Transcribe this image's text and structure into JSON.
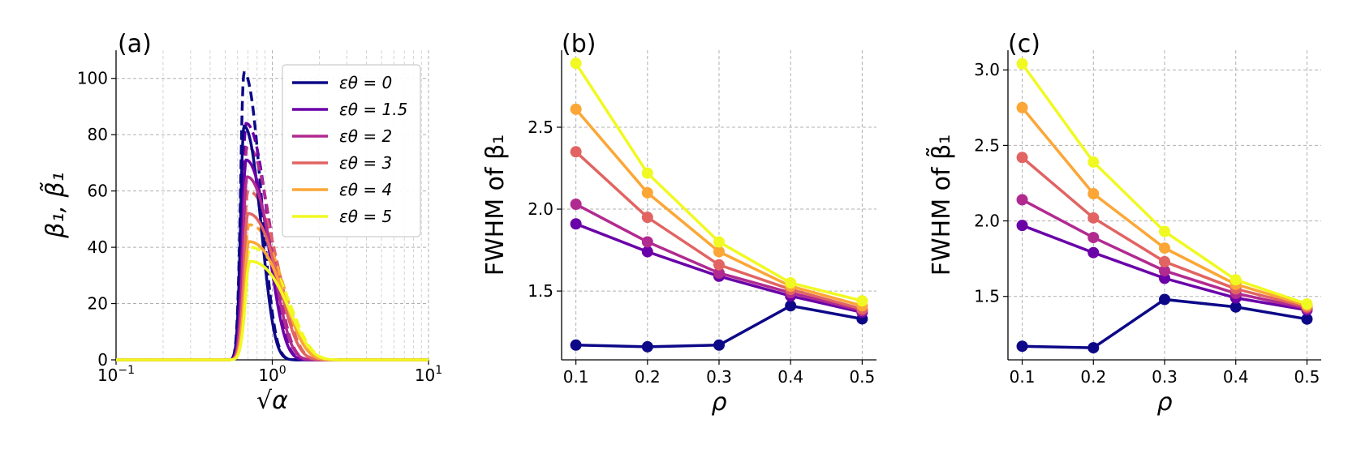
{
  "colors": [
    "#0d0887",
    "#6a00a8",
    "#b12a90",
    "#e16462",
    "#fca636",
    "#f0f921"
  ],
  "chart_data": [
    {
      "panel_label": "(a)",
      "type": "line",
      "xscale": "log",
      "xlim": [
        0.1,
        10
      ],
      "ylim": [
        0,
        110
      ],
      "xlabel": "√α",
      "ylabel": "β₁, β̃₁",
      "yticks": [
        0,
        20,
        40,
        60,
        80,
        100
      ],
      "xticks": [
        {
          "base": "10",
          "exp": "−1",
          "value": 0.1
        },
        {
          "base": "10",
          "exp": "0",
          "value": 1
        },
        {
          "base": "10",
          "exp": "1",
          "value": 10
        }
      ],
      "grid": true,
      "legend": {
        "placement": "top-right",
        "entries": [
          "εθ = 0",
          "εθ = 1.5",
          "εθ = 2",
          "εθ = 3",
          "εθ = 4",
          "εθ = 5"
        ]
      },
      "curve_model": "asymmetric peak with onset at sqrt(alpha)=0.5; peak location, peak height and left/right widths per series",
      "series": [
        {
          "name": "εθ = 0",
          "onset": 0.5,
          "peak_x": 0.66,
          "solid_peak": 83,
          "dashed_peak": 102,
          "left_width": 0.06,
          "right_width": 0.3
        },
        {
          "name": "εθ = 1.5",
          "onset": 0.5,
          "peak_x": 0.68,
          "solid_peak": 71,
          "dashed_peak": 84,
          "left_width": 0.07,
          "right_width": 0.42
        },
        {
          "name": "εθ = 2",
          "onset": 0.5,
          "peak_x": 0.69,
          "solid_peak": 65,
          "dashed_peak": 76,
          "left_width": 0.075,
          "right_width": 0.48
        },
        {
          "name": "εθ = 3",
          "onset": 0.5,
          "peak_x": 0.7,
          "solid_peak": 52,
          "dashed_peak": 60,
          "left_width": 0.08,
          "right_width": 0.6
        },
        {
          "name": "εθ = 4",
          "onset": 0.5,
          "peak_x": 0.71,
          "solid_peak": 42,
          "dashed_peak": 48,
          "left_width": 0.085,
          "right_width": 0.72
        },
        {
          "name": "εθ = 5",
          "onset": 0.5,
          "peak_x": 0.72,
          "solid_peak": 35,
          "dashed_peak": 40,
          "left_width": 0.09,
          "right_width": 0.82
        }
      ]
    },
    {
      "panel_label": "(b)",
      "type": "line",
      "x": [
        0.1,
        0.2,
        0.3,
        0.4,
        0.5
      ],
      "xlim": [
        0.08,
        0.52
      ],
      "ylim": [
        1.08,
        2.97
      ],
      "xticks": [
        "0.1",
        "0.2",
        "0.3",
        "0.4",
        "0.5"
      ],
      "yticks": [
        "1.5",
        "2.0",
        "2.5"
      ],
      "xlabel": "ρ",
      "ylabel": "FWHM of β₁",
      "grid": true,
      "series": [
        {
          "name": "εθ = 0",
          "values": [
            1.17,
            1.16,
            1.17,
            1.41,
            1.33
          ]
        },
        {
          "name": "εθ = 1.5",
          "values": [
            1.91,
            1.74,
            1.59,
            1.47,
            1.37
          ]
        },
        {
          "name": "εθ = 2",
          "values": [
            2.03,
            1.8,
            1.61,
            1.49,
            1.38
          ]
        },
        {
          "name": "εθ = 3",
          "values": [
            2.35,
            1.95,
            1.66,
            1.51,
            1.39
          ]
        },
        {
          "name": "εθ = 4",
          "values": [
            2.61,
            2.1,
            1.74,
            1.53,
            1.41
          ]
        },
        {
          "name": "εθ = 5",
          "values": [
            2.89,
            2.22,
            1.8,
            1.55,
            1.44
          ]
        }
      ]
    },
    {
      "panel_label": "(c)",
      "type": "line",
      "x": [
        0.1,
        0.2,
        0.3,
        0.4,
        0.5
      ],
      "xlim": [
        0.08,
        0.52
      ],
      "ylim": [
        1.08,
        3.13
      ],
      "xticks": [
        "0.1",
        "0.2",
        "0.3",
        "0.4",
        "0.5"
      ],
      "yticks": [
        "1.5",
        "2.0",
        "2.5",
        "3.0"
      ],
      "xlabel": "ρ",
      "ylabel": "FWHM of β̃₁",
      "grid": true,
      "series": [
        {
          "name": "εθ = 0",
          "values": [
            1.17,
            1.16,
            1.48,
            1.43,
            1.35
          ]
        },
        {
          "name": "εθ = 1.5",
          "values": [
            1.97,
            1.79,
            1.62,
            1.49,
            1.41
          ]
        },
        {
          "name": "εθ = 2",
          "values": [
            2.14,
            1.89,
            1.67,
            1.52,
            1.42
          ]
        },
        {
          "name": "εθ = 3",
          "values": [
            2.42,
            2.02,
            1.73,
            1.55,
            1.43
          ]
        },
        {
          "name": "εθ = 4",
          "values": [
            2.75,
            2.18,
            1.82,
            1.58,
            1.44
          ]
        },
        {
          "name": "εθ = 5",
          "values": [
            3.04,
            2.39,
            1.93,
            1.61,
            1.45
          ]
        }
      ]
    }
  ]
}
